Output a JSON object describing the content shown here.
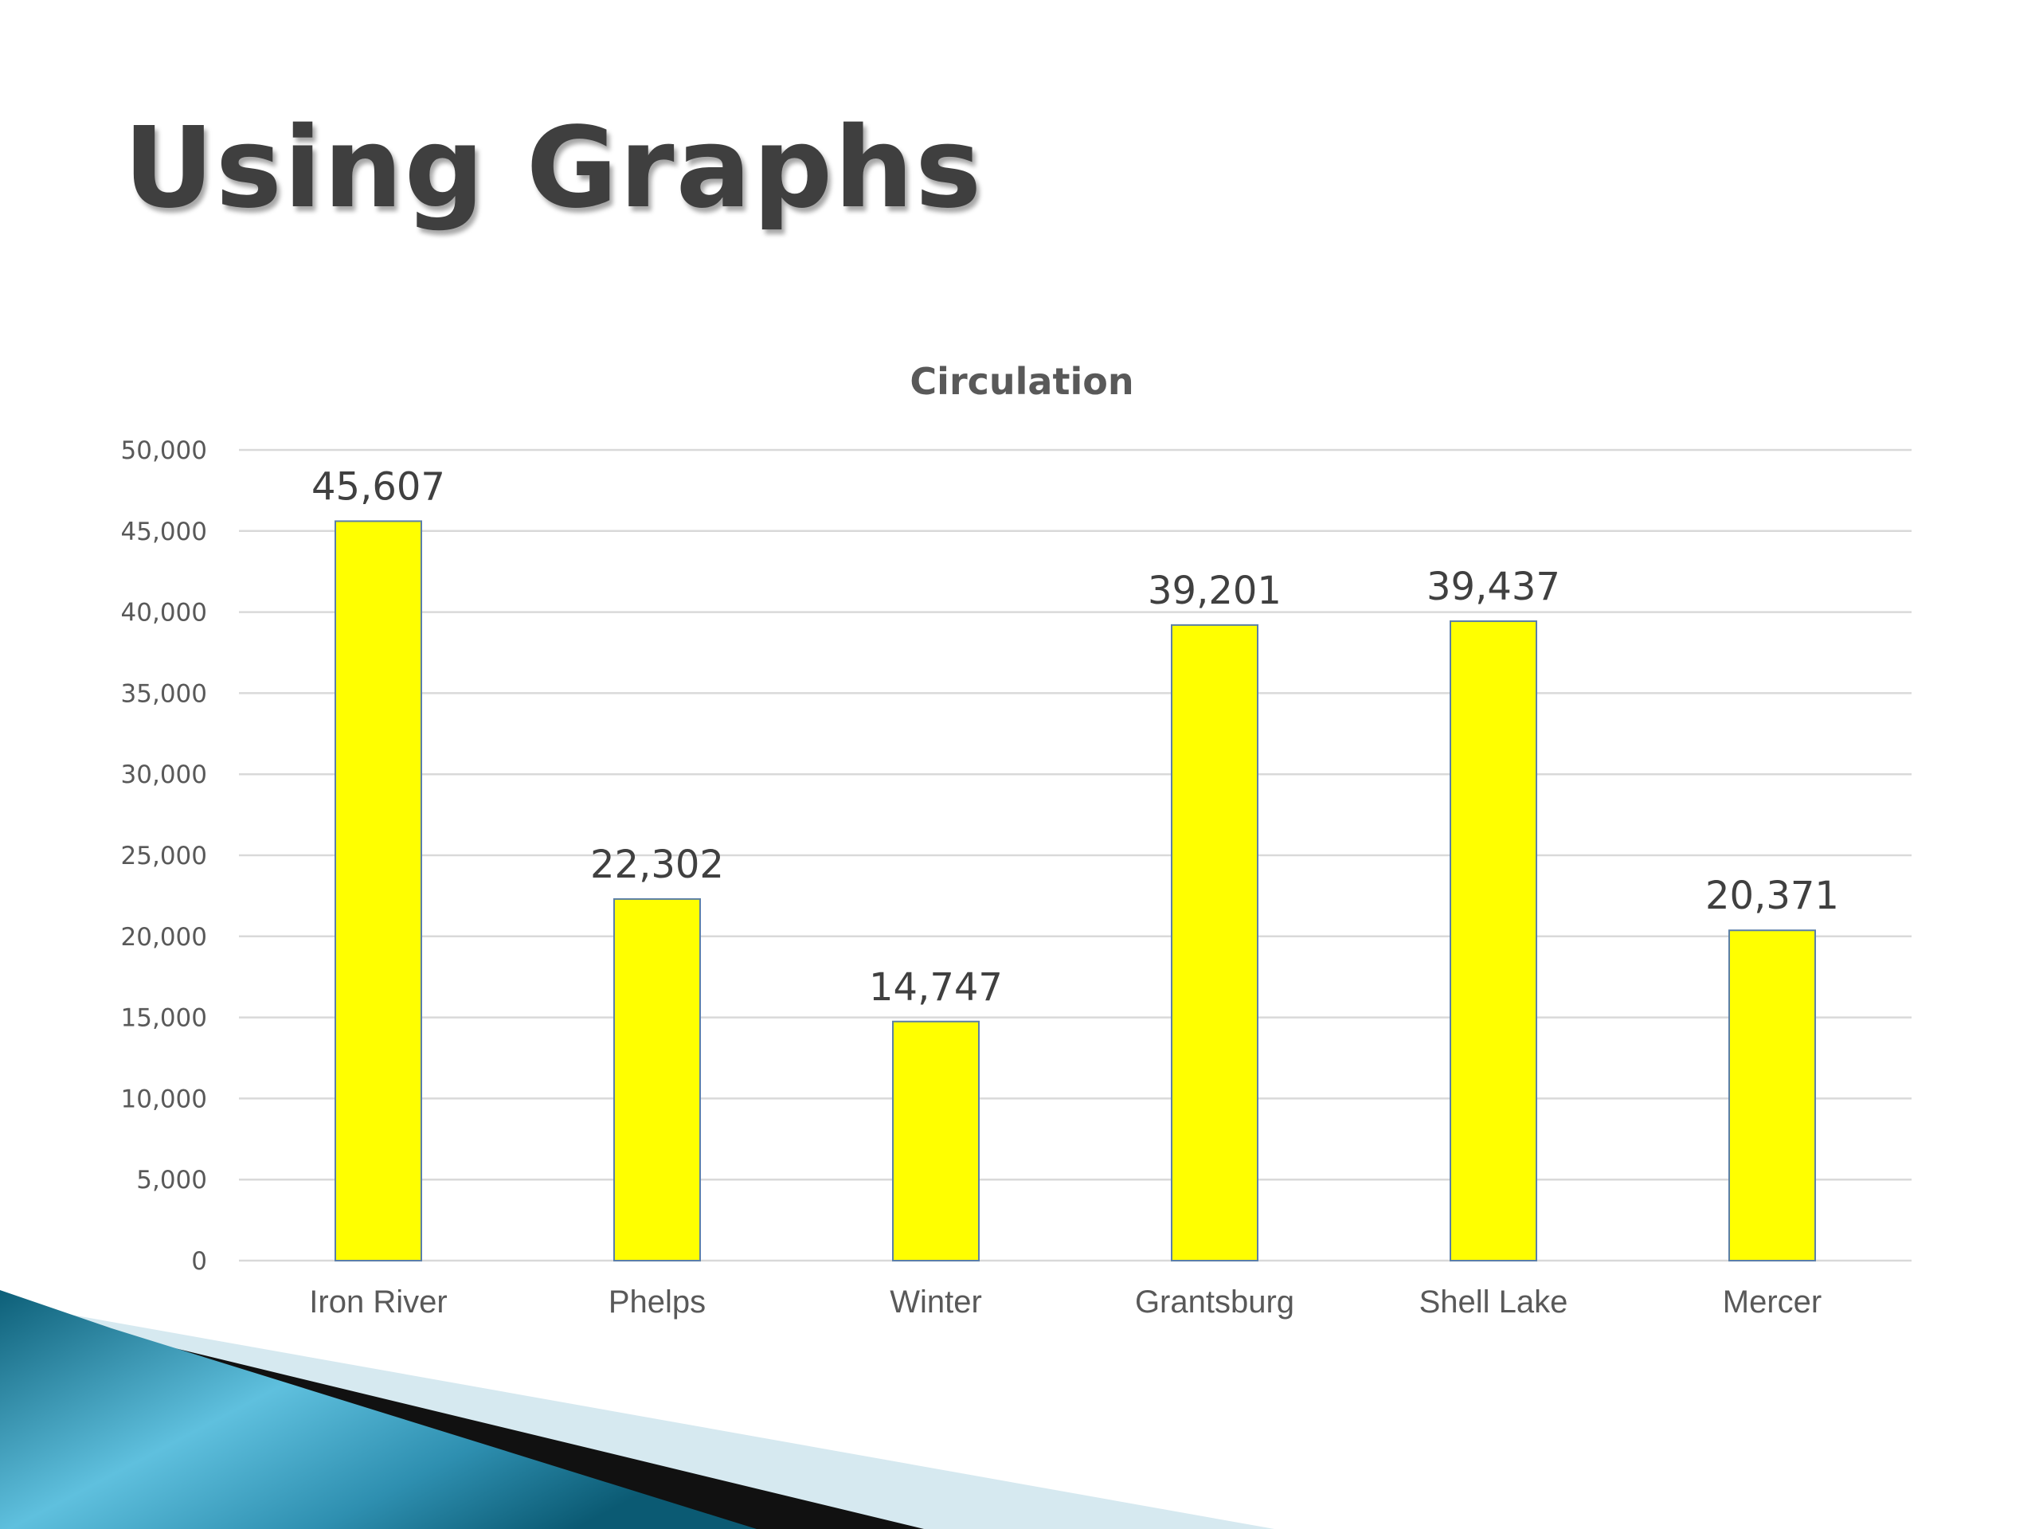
{
  "slide": {
    "title": "Using Graphs"
  },
  "colors": {
    "bar_fill": "#ffff00",
    "bar_outline": "#5b7fa8",
    "title_text": "#3f3f3f",
    "axis_text": "#595959",
    "gridline": "#d9d9d9",
    "accent_teal": "#1a7e9c",
    "accent_light": "#d6e9f0"
  },
  "chart_data": {
    "type": "bar",
    "title": "Circulation",
    "xlabel": "",
    "ylabel": "",
    "categories": [
      "Iron River",
      "Phelps",
      "Winter",
      "Grantsburg",
      "Shell Lake",
      "Mercer"
    ],
    "values": [
      45607,
      22302,
      14747,
      39201,
      39437,
      20371
    ],
    "data_labels": [
      "45,607",
      "22,302",
      "14,747",
      "39,201",
      "39,437",
      "20,371"
    ],
    "ylim": [
      0,
      50000
    ],
    "yticks": [
      0,
      5000,
      10000,
      15000,
      20000,
      25000,
      30000,
      35000,
      40000,
      45000,
      50000
    ],
    "ytick_labels": [
      "0",
      "5,000",
      "10,000",
      "15,000",
      "20,000",
      "25,000",
      "30,000",
      "35,000",
      "40,000",
      "45,000",
      "50,000"
    ],
    "grid": true,
    "legend": "none"
  }
}
